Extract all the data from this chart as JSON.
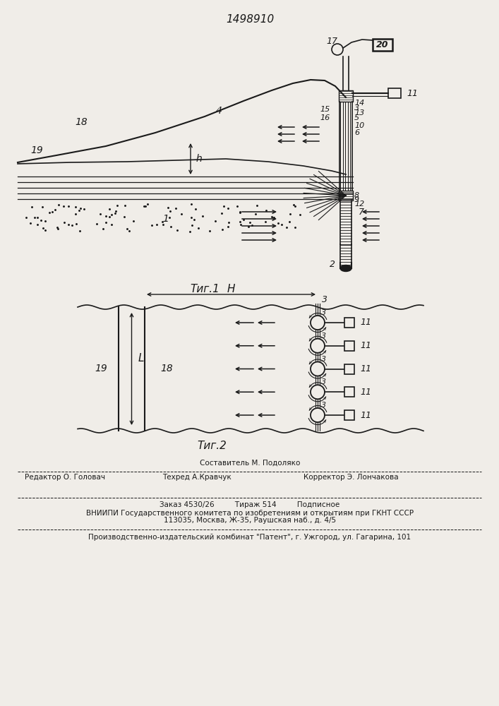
{
  "patent_number": "1498910",
  "fig1_caption": "Τиг.1",
  "fig2_caption": "Τиг.2",
  "bg_color": "#f0ede8",
  "line_color": "#1a1a1a",
  "footer_line0": "Составитель М. Подоляко",
  "footer_line1a": "Редактор О. Головач",
  "footer_line1b": "Техред А.Кравчук",
  "footer_line1c": "Корректор Э. Лончакова",
  "footer_line2": "Заказ 4530/26         Тираж 514         Подписное",
  "footer_line3": "ВНИИПИ Государственного комитета по изобретениям и открытиям при ГКНТ СССР",
  "footer_line4": "113035, Москва, Ж-35, Раушская наб., д. 4/5",
  "footer_line5": "Производственно-издательский комбинат \"Патент\", г. Ужгород, ул. Гагарина, 101"
}
